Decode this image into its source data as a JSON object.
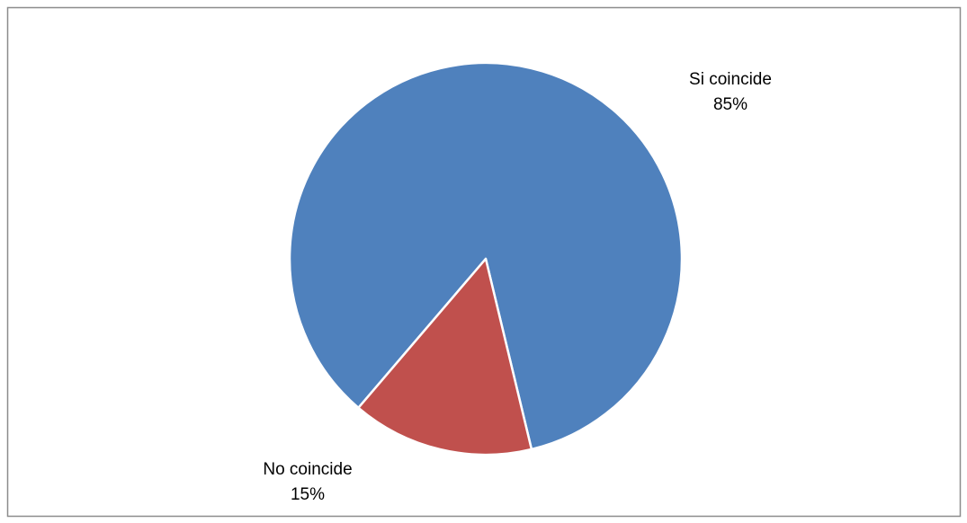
{
  "chart_data": {
    "type": "pie",
    "categories": [
      "Si coincide",
      "No coincide"
    ],
    "values": [
      85,
      15
    ],
    "value_labels": [
      "85%",
      "15%"
    ],
    "colors": [
      "#4f81bd",
      "#c0504d"
    ]
  }
}
